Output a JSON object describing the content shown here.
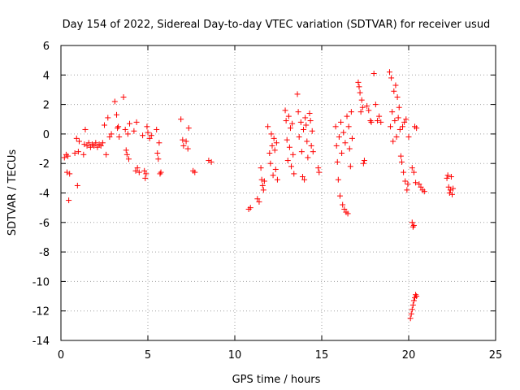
{
  "chart_data": {
    "type": "scatter",
    "title": "Day 154 of 2022, Sidereal Day-to-day VTEC variation (SDTVAR) for receiver usud",
    "xlabel": "GPS time / hours",
    "ylabel": "SDTVAR / TECUs",
    "xlim": [
      0,
      25
    ],
    "ylim": [
      -14,
      6
    ],
    "xticks": [
      "0",
      "5",
      "10",
      "15",
      "20",
      "25"
    ],
    "xtick_values": [
      0,
      5,
      10,
      15,
      20,
      25
    ],
    "yticks": [
      "6",
      "4",
      "2",
      "0",
      "-2",
      "-4",
      "-6",
      "-8",
      "-10",
      "-12",
      "-14"
    ],
    "ytick_values": [
      6,
      4,
      2,
      0,
      -2,
      -4,
      -6,
      -8,
      -10,
      -12,
      -14
    ],
    "grid": true,
    "marker": "+",
    "series": [
      {
        "name": "SDTVAR",
        "color": "#ff0000",
        "points": [
          [
            0.2,
            -1.6
          ],
          [
            0.3,
            -1.4
          ],
          [
            0.35,
            -2.6
          ],
          [
            0.4,
            -1.5
          ],
          [
            0.45,
            -4.5
          ],
          [
            0.5,
            -2.7
          ],
          [
            0.8,
            -1.3
          ],
          [
            0.9,
            -0.3
          ],
          [
            0.95,
            -3.5
          ],
          [
            1.0,
            -1.2
          ],
          [
            1.05,
            -0.5
          ],
          [
            1.3,
            -1.4
          ],
          [
            1.35,
            -0.7
          ],
          [
            1.4,
            0.3
          ],
          [
            1.5,
            -0.8
          ],
          [
            1.6,
            -0.6
          ],
          [
            1.7,
            -0.9
          ],
          [
            1.8,
            -0.7
          ],
          [
            1.9,
            -0.8
          ],
          [
            2.0,
            -0.6
          ],
          [
            2.1,
            -0.9
          ],
          [
            2.2,
            -0.7
          ],
          [
            2.3,
            -0.8
          ],
          [
            2.4,
            -0.6
          ],
          [
            2.5,
            0.6
          ],
          [
            2.6,
            -1.4
          ],
          [
            2.7,
            1.1
          ],
          [
            2.8,
            -0.2
          ],
          [
            2.9,
            0.0
          ],
          [
            3.1,
            2.2
          ],
          [
            3.2,
            1.3
          ],
          [
            3.25,
            0.4
          ],
          [
            3.3,
            0.5
          ],
          [
            3.35,
            -0.2
          ],
          [
            3.6,
            2.5
          ],
          [
            3.7,
            0.3
          ],
          [
            3.75,
            -1.1
          ],
          [
            3.8,
            -1.4
          ],
          [
            3.85,
            0.0
          ],
          [
            3.9,
            -1.7
          ],
          [
            3.95,
            0.7
          ],
          [
            4.2,
            0.2
          ],
          [
            4.3,
            -2.5
          ],
          [
            4.35,
            0.8
          ],
          [
            4.4,
            -2.3
          ],
          [
            4.5,
            -2.6
          ],
          [
            4.7,
            -0.1
          ],
          [
            4.8,
            -2.5
          ],
          [
            4.85,
            -3.0
          ],
          [
            4.9,
            -2.7
          ],
          [
            4.95,
            0.5
          ],
          [
            5.0,
            0.1
          ],
          [
            5.1,
            -0.3
          ],
          [
            5.2,
            -0.1
          ],
          [
            5.5,
            0.3
          ],
          [
            5.55,
            -1.3
          ],
          [
            5.6,
            -1.7
          ],
          [
            5.65,
            -0.6
          ],
          [
            5.7,
            -2.7
          ],
          [
            5.75,
            -2.6
          ],
          [
            6.9,
            1.0
          ],
          [
            7.0,
            -0.4
          ],
          [
            7.05,
            -0.8
          ],
          [
            7.2,
            -0.5
          ],
          [
            7.3,
            -1.0
          ],
          [
            7.35,
            0.4
          ],
          [
            7.6,
            -2.5
          ],
          [
            7.7,
            -2.6
          ],
          [
            8.5,
            -1.8
          ],
          [
            8.65,
            -1.9
          ],
          [
            10.8,
            -5.1
          ],
          [
            10.9,
            -5.0
          ],
          [
            11.3,
            -4.4
          ],
          [
            11.4,
            -4.6
          ],
          [
            11.5,
            -2.3
          ],
          [
            11.55,
            -3.1
          ],
          [
            11.6,
            -3.5
          ],
          [
            11.65,
            -3.8
          ],
          [
            11.7,
            -3.2
          ],
          [
            11.9,
            0.5
          ],
          [
            12.0,
            -1.3
          ],
          [
            12.05,
            -2.0
          ],
          [
            12.1,
            0.0
          ],
          [
            12.15,
            -0.8
          ],
          [
            12.2,
            -2.8
          ],
          [
            12.25,
            -0.3
          ],
          [
            12.3,
            -1.1
          ],
          [
            12.35,
            -2.4
          ],
          [
            12.4,
            -0.6
          ],
          [
            12.45,
            -3.1
          ],
          [
            12.9,
            1.6
          ],
          [
            12.95,
            0.9
          ],
          [
            13.0,
            -0.4
          ],
          [
            13.05,
            -1.8
          ],
          [
            13.1,
            1.2
          ],
          [
            13.15,
            -0.9
          ],
          [
            13.2,
            0.4
          ],
          [
            13.25,
            -2.2
          ],
          [
            13.3,
            0.7
          ],
          [
            13.35,
            -1.4
          ],
          [
            13.4,
            -2.7
          ],
          [
            13.6,
            2.7
          ],
          [
            13.65,
            1.5
          ],
          [
            13.7,
            -0.2
          ],
          [
            13.8,
            0.8
          ],
          [
            13.85,
            -1.2
          ],
          [
            13.9,
            -2.9
          ],
          [
            13.95,
            0.3
          ],
          [
            14.0,
            -3.1
          ],
          [
            14.05,
            1.1
          ],
          [
            14.1,
            0.6
          ],
          [
            14.15,
            -0.5
          ],
          [
            14.2,
            -1.6
          ],
          [
            14.3,
            1.4
          ],
          [
            14.35,
            0.9
          ],
          [
            14.4,
            -0.8
          ],
          [
            14.45,
            0.2
          ],
          [
            14.5,
            -1.2
          ],
          [
            14.8,
            -2.3
          ],
          [
            14.85,
            -2.6
          ],
          [
            15.8,
            0.5
          ],
          [
            15.85,
            -0.8
          ],
          [
            15.9,
            -1.9
          ],
          [
            15.95,
            -3.1
          ],
          [
            16.0,
            -0.2
          ],
          [
            16.05,
            -4.2
          ],
          [
            16.1,
            0.8
          ],
          [
            16.15,
            -1.3
          ],
          [
            16.2,
            -4.8
          ],
          [
            16.25,
            0.1
          ],
          [
            16.3,
            -5.1
          ],
          [
            16.35,
            -0.6
          ],
          [
            16.4,
            -5.3
          ],
          [
            16.45,
            1.2
          ],
          [
            16.5,
            -5.4
          ],
          [
            16.55,
            0.5
          ],
          [
            16.6,
            -1.0
          ],
          [
            16.65,
            -2.2
          ],
          [
            16.7,
            1.5
          ],
          [
            16.75,
            -0.3
          ],
          [
            17.1,
            3.5
          ],
          [
            17.15,
            3.2
          ],
          [
            17.2,
            2.8
          ],
          [
            17.25,
            1.5
          ],
          [
            17.3,
            2.3
          ],
          [
            17.35,
            1.8
          ],
          [
            17.4,
            -2.0
          ],
          [
            17.45,
            -1.8
          ],
          [
            17.6,
            1.9
          ],
          [
            17.7,
            1.6
          ],
          [
            17.8,
            0.9
          ],
          [
            17.85,
            0.8
          ],
          [
            18.0,
            4.1
          ],
          [
            18.1,
            2.0
          ],
          [
            18.2,
            0.9
          ],
          [
            18.3,
            1.2
          ],
          [
            18.4,
            0.8
          ],
          [
            18.9,
            4.2
          ],
          [
            18.95,
            0.5
          ],
          [
            19.0,
            3.8
          ],
          [
            19.05,
            1.5
          ],
          [
            19.1,
            -0.5
          ],
          [
            19.15,
            2.9
          ],
          [
            19.2,
            0.9
          ],
          [
            19.25,
            3.3
          ],
          [
            19.3,
            -0.2
          ],
          [
            19.35,
            2.5
          ],
          [
            19.4,
            1.1
          ],
          [
            19.45,
            1.8
          ],
          [
            19.5,
            0.3
          ],
          [
            19.55,
            -1.5
          ],
          [
            19.6,
            -1.9
          ],
          [
            19.65,
            0.5
          ],
          [
            19.7,
            -2.6
          ],
          [
            19.75,
            0.8
          ],
          [
            19.8,
            -3.2
          ],
          [
            19.85,
            1.0
          ],
          [
            19.9,
            -3.8
          ],
          [
            19.95,
            -3.4
          ],
          [
            20.0,
            -0.2
          ],
          [
            20.1,
            -12.5
          ],
          [
            20.15,
            -12.2
          ],
          [
            20.2,
            -11.9
          ],
          [
            20.25,
            -11.6
          ],
          [
            20.3,
            -11.3
          ],
          [
            20.35,
            -11.1
          ],
          [
            20.4,
            -10.9
          ],
          [
            20.45,
            -11.0
          ],
          [
            20.2,
            -6.0
          ],
          [
            20.25,
            -6.3
          ],
          [
            20.3,
            -6.2
          ],
          [
            20.2,
            -2.3
          ],
          [
            20.3,
            -2.6
          ],
          [
            20.4,
            -3.3
          ],
          [
            20.35,
            0.5
          ],
          [
            20.45,
            0.4
          ],
          [
            20.6,
            -3.4
          ],
          [
            20.7,
            -3.6
          ],
          [
            20.8,
            -3.8
          ],
          [
            20.9,
            -3.9
          ],
          [
            22.2,
            -3.0
          ],
          [
            22.25,
            -2.8
          ],
          [
            22.3,
            -3.6
          ],
          [
            22.35,
            -4.0
          ],
          [
            22.4,
            -3.8
          ],
          [
            22.45,
            -2.9
          ],
          [
            22.5,
            -4.1
          ],
          [
            22.55,
            -3.7
          ]
        ]
      }
    ]
  }
}
